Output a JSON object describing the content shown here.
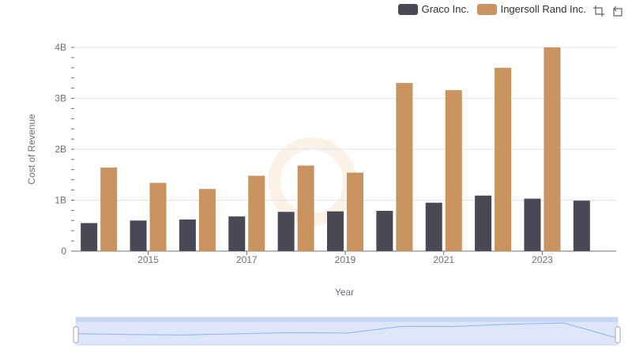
{
  "legend": {
    "series_a": "Graco Inc.",
    "series_b": "Ingersoll Rand Inc."
  },
  "toolbox": {
    "zoom_icon": "zoom-icon",
    "restore_icon": "restore-icon"
  },
  "colors": {
    "graco": "#494955",
    "ingersoll": "#c8935f",
    "grid": "#e0e6f1",
    "axis": "#6e7079",
    "slider_fill": "#d4e0f9",
    "slider_line": "#8fb0f7"
  },
  "chart_data": {
    "type": "bar",
    "title": "",
    "xlabel": "Year",
    "ylabel": "Cost of Revenue",
    "x": [
      2014,
      2015,
      2016,
      2017,
      2018,
      2019,
      2020,
      2021,
      2022,
      2023,
      2024
    ],
    "x_tick_labels": [
      "2015",
      "2017",
      "2019",
      "2021",
      "2023"
    ],
    "y_tick_labels": [
      "0",
      "1B",
      "2B",
      "3B",
      "4B"
    ],
    "ylim": [
      0,
      4000000000
    ],
    "series": [
      {
        "name": "Graco Inc.",
        "values": [
          550000000,
          600000000,
          620000000,
          680000000,
          770000000,
          780000000,
          790000000,
          950000000,
          1090000000,
          1030000000,
          990000000
        ]
      },
      {
        "name": "Ingersoll Rand Inc.",
        "values": [
          1640000000,
          1340000000,
          1220000000,
          1480000000,
          1680000000,
          1540000000,
          3300000000,
          3160000000,
          3600000000,
          4000000000,
          null
        ]
      }
    ],
    "legend_position": "top-right",
    "grid": true
  }
}
